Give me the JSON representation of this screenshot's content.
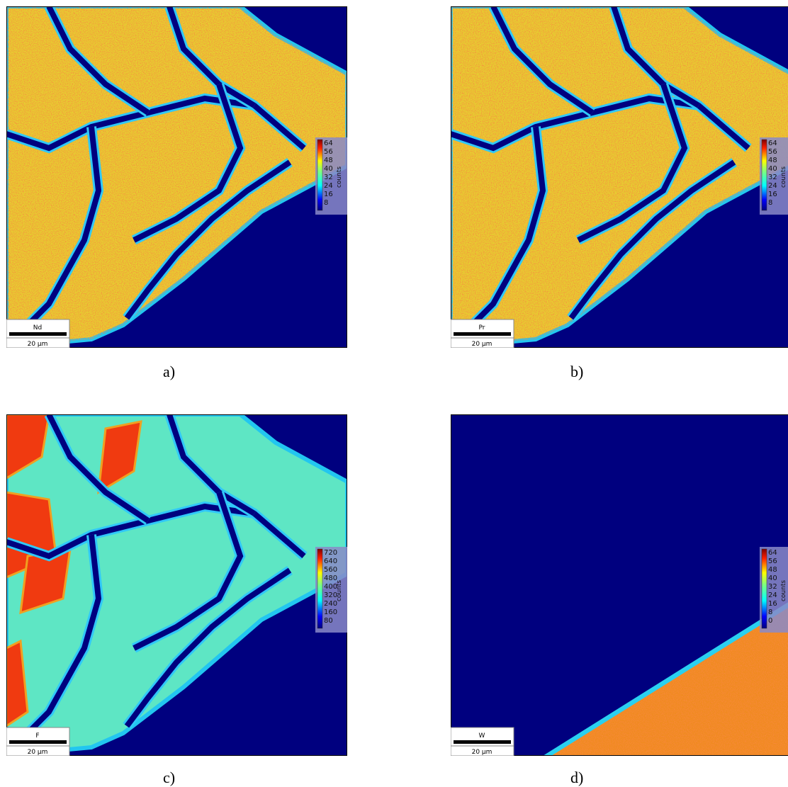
{
  "panels": [
    {
      "caption": "a)",
      "element": "Nd",
      "scale": "20 µm",
      "colorbar_label": "counts",
      "colorbar_ticks": [
        64,
        56,
        48,
        40,
        32,
        24,
        16,
        8
      ]
    },
    {
      "caption": "b)",
      "element": "Pr",
      "scale": "20 µm",
      "colorbar_label": "counts",
      "colorbar_ticks": [
        64,
        56,
        48,
        40,
        32,
        24,
        16,
        8
      ]
    },
    {
      "caption": "c)",
      "element": "F",
      "scale": "20 µm",
      "colorbar_label": "counts",
      "colorbar_ticks": [
        720,
        640,
        560,
        480,
        400,
        320,
        240,
        160,
        80
      ]
    },
    {
      "caption": "d)",
      "element": "W",
      "scale": "20 µm",
      "colorbar_label": "counts",
      "colorbar_ticks": [
        64,
        56,
        48,
        40,
        32,
        24,
        16,
        8,
        0
      ]
    }
  ]
}
